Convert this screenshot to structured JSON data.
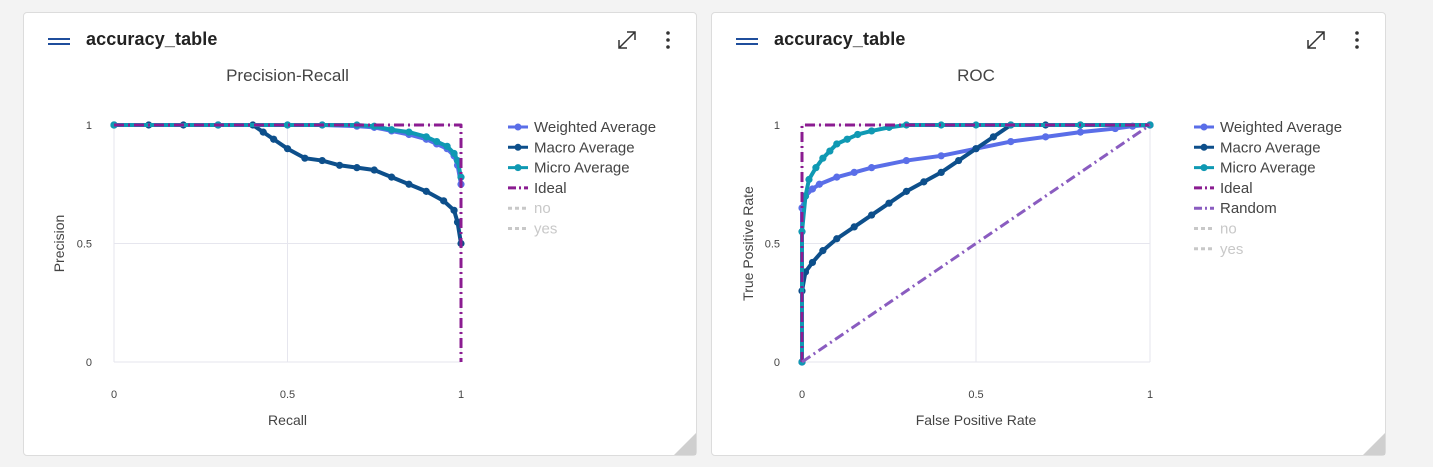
{
  "panels": [
    {
      "header_title": "accuracy_table",
      "chart_data": {
        "type": "line",
        "title": "Precision-Recall",
        "xlabel": "Recall",
        "ylabel": "Precision",
        "xlim": [
          0,
          1
        ],
        "ylim": [
          0,
          1
        ],
        "xticks": [
          "0",
          "0.5",
          "1"
        ],
        "yticks": [
          "0",
          "0.5",
          "1"
        ],
        "grid": true,
        "legend_position": "right",
        "series": [
          {
            "name": "Weighted Average",
            "color": "#5a6ee8",
            "style": "solid",
            "markers": true,
            "x": [
              0,
              0.3,
              0.5,
              0.6,
              0.7,
              0.75,
              0.8,
              0.85,
              0.9,
              0.93,
              0.96,
              0.98,
              0.99,
              1.0
            ],
            "y": [
              1,
              1,
              1,
              1,
              0.995,
              0.99,
              0.975,
              0.96,
              0.94,
              0.92,
              0.9,
              0.87,
              0.83,
              0.75
            ]
          },
          {
            "name": "Macro Average",
            "color": "#0d4f8b",
            "style": "solid",
            "markers": true,
            "x": [
              0,
              0.1,
              0.2,
              0.3,
              0.4,
              0.43,
              0.46,
              0.5,
              0.55,
              0.6,
              0.65,
              0.7,
              0.75,
              0.8,
              0.85,
              0.9,
              0.95,
              0.98,
              0.99,
              1.0
            ],
            "y": [
              1,
              1,
              1,
              1,
              1,
              0.97,
              0.94,
              0.9,
              0.86,
              0.85,
              0.83,
              0.82,
              0.81,
              0.78,
              0.75,
              0.72,
              0.68,
              0.64,
              0.59,
              0.5
            ]
          },
          {
            "name": "Micro Average",
            "color": "#0f99b3",
            "style": "solid",
            "markers": true,
            "x": [
              0,
              0.3,
              0.5,
              0.6,
              0.7,
              0.75,
              0.8,
              0.85,
              0.9,
              0.93,
              0.96,
              0.98,
              0.99,
              1.0
            ],
            "y": [
              1,
              1,
              1,
              1,
              1,
              0.995,
              0.98,
              0.97,
              0.95,
              0.93,
              0.91,
              0.88,
              0.85,
              0.78
            ]
          },
          {
            "name": "Ideal",
            "color": "#8b1c91",
            "style": "dashdot",
            "markers": false,
            "x": [
              0,
              1,
              1
            ],
            "y": [
              1,
              1,
              0
            ]
          },
          {
            "name": "no",
            "color": "#c8c8c8",
            "style": "dot",
            "muted": true,
            "x": [],
            "y": []
          },
          {
            "name": "yes",
            "color": "#c8c8c8",
            "style": "dot",
            "muted": true,
            "x": [],
            "y": []
          }
        ]
      }
    },
    {
      "header_title": "accuracy_table",
      "chart_data": {
        "type": "line",
        "title": "ROC",
        "xlabel": "False Positive Rate",
        "ylabel": "True Positive Rate",
        "xlim": [
          0,
          1
        ],
        "ylim": [
          0,
          1
        ],
        "xticks": [
          "0",
          "0.5",
          "1"
        ],
        "yticks": [
          "0",
          "0.5",
          "1"
        ],
        "grid": true,
        "legend_position": "right",
        "series": [
          {
            "name": "Weighted Average",
            "color": "#5a6ee8",
            "style": "solid",
            "markers": true,
            "x": [
              0,
              0.0,
              0.01,
              0.03,
              0.05,
              0.1,
              0.15,
              0.2,
              0.3,
              0.4,
              0.5,
              0.6,
              0.7,
              0.8,
              0.9,
              0.95,
              1.0
            ],
            "y": [
              0,
              0.65,
              0.7,
              0.73,
              0.75,
              0.78,
              0.8,
              0.82,
              0.85,
              0.87,
              0.9,
              0.93,
              0.95,
              0.97,
              0.985,
              0.995,
              1.0
            ]
          },
          {
            "name": "Macro Average",
            "color": "#0d4f8b",
            "style": "solid",
            "markers": true,
            "x": [
              0,
              0.0,
              0.01,
              0.03,
              0.06,
              0.1,
              0.15,
              0.2,
              0.25,
              0.3,
              0.35,
              0.4,
              0.45,
              0.5,
              0.55,
              0.6,
              0.7,
              0.8,
              1.0
            ],
            "y": [
              0,
              0.3,
              0.38,
              0.42,
              0.47,
              0.52,
              0.57,
              0.62,
              0.67,
              0.72,
              0.76,
              0.8,
              0.85,
              0.9,
              0.95,
              1.0,
              1.0,
              1.0,
              1.0
            ]
          },
          {
            "name": "Micro Average",
            "color": "#0f99b3",
            "style": "solid",
            "markers": true,
            "x": [
              0,
              0.0,
              0.01,
              0.02,
              0.04,
              0.06,
              0.08,
              0.1,
              0.13,
              0.16,
              0.2,
              0.25,
              0.3,
              0.4,
              0.5,
              0.6,
              0.8,
              1.0
            ],
            "y": [
              0,
              0.55,
              0.7,
              0.77,
              0.82,
              0.86,
              0.89,
              0.92,
              0.94,
              0.96,
              0.975,
              0.99,
              1.0,
              1.0,
              1.0,
              1.0,
              1.0,
              1.0
            ]
          },
          {
            "name": "Ideal",
            "color": "#8b1c91",
            "style": "dashdot",
            "markers": false,
            "x": [
              0,
              0,
              1
            ],
            "y": [
              0,
              1,
              1
            ]
          },
          {
            "name": "Random",
            "color": "#8a5cc0",
            "style": "dashdot",
            "markers": false,
            "x": [
              0,
              1
            ],
            "y": [
              0,
              1
            ]
          },
          {
            "name": "no",
            "color": "#c8c8c8",
            "style": "dot",
            "muted": true,
            "x": [],
            "y": []
          },
          {
            "name": "yes",
            "color": "#c8c8c8",
            "style": "dot",
            "muted": true,
            "x": [],
            "y": []
          }
        ]
      }
    }
  ]
}
